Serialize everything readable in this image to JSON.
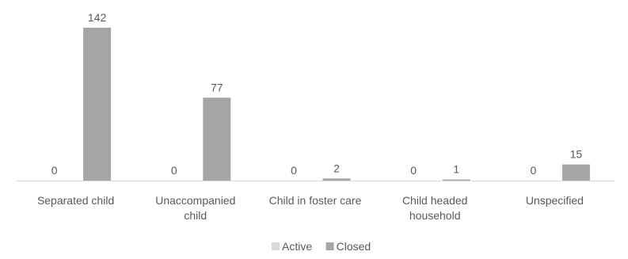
{
  "chart_data": {
    "type": "bar",
    "categories": [
      [
        "Separated child"
      ],
      [
        "Unaccompanied",
        "child"
      ],
      [
        "Child in foster care"
      ],
      [
        "Child headed",
        "household"
      ],
      [
        "Unspecified"
      ]
    ],
    "series": [
      {
        "name": "Active",
        "values": [
          0,
          0,
          0,
          0,
          0
        ],
        "color": "#d9d9d9"
      },
      {
        "name": "Closed",
        "values": [
          142,
          77,
          2,
          1,
          15
        ],
        "color": "#a5a5a5"
      }
    ],
    "data_labels": true,
    "ylim": [
      0,
      142
    ],
    "grid": false,
    "legend_position": "bottom",
    "axis_color": "#d9d9d9"
  }
}
